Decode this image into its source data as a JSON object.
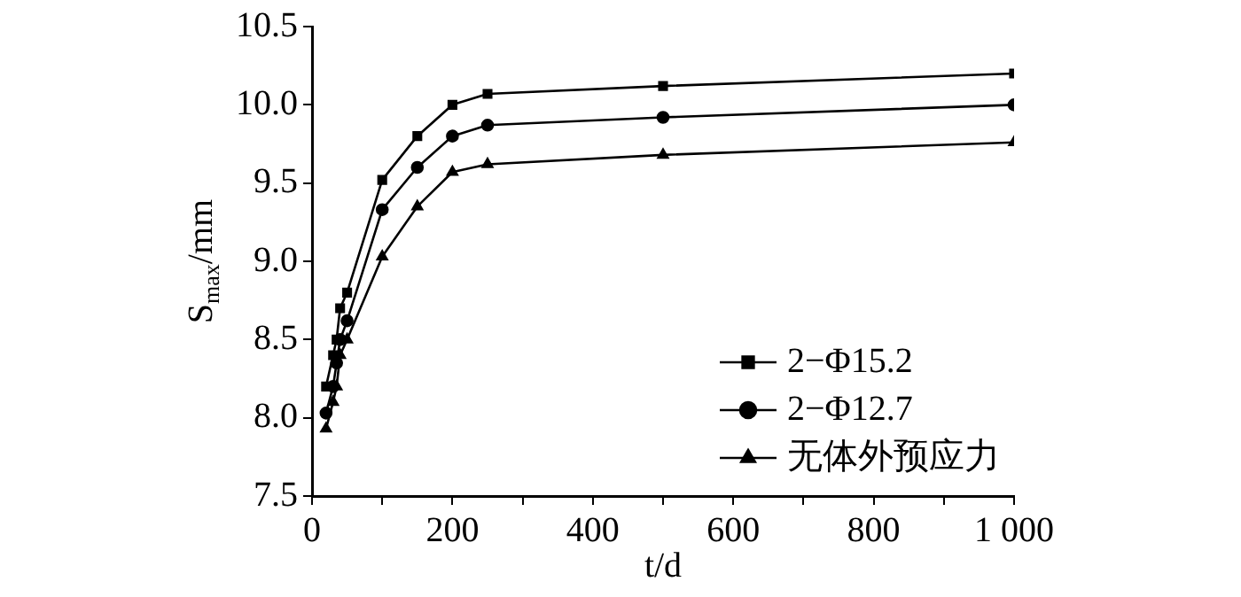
{
  "chart_data": {
    "type": "line",
    "xlabel": "t/d",
    "ylabel": "S$_{max}$/mm",
    "x": [
      20,
      30,
      35,
      40,
      50,
      100,
      150,
      200,
      250,
      500,
      1000
    ],
    "series": [
      {
        "name": "2−Φ15.2",
        "color": "#000000",
        "marker": "square",
        "values": [
          8.2,
          8.4,
          8.5,
          8.7,
          8.8,
          9.52,
          9.8,
          10.0,
          10.07,
          10.12,
          10.2
        ]
      },
      {
        "name": "2−Φ12.7",
        "color": "#000000",
        "marker": "circle",
        "values": [
          8.03,
          8.2,
          8.35,
          8.5,
          8.62,
          9.33,
          9.6,
          9.8,
          9.87,
          9.92,
          10.0
        ]
      },
      {
        "name": "无体外预应力",
        "color": "#000000",
        "marker": "triangle",
        "values": [
          7.93,
          8.1,
          8.2,
          8.4,
          8.5,
          9.03,
          9.35,
          9.57,
          9.62,
          9.68,
          9.76
        ]
      }
    ],
    "xlim": [
      0,
      1000
    ],
    "xticks": [
      0,
      {
        "value": 100,
        "label": null
      },
      200,
      {
        "value": 300,
        "label": null
      },
      400,
      {
        "value": 500,
        "label": null
      },
      600,
      {
        "value": 700,
        "label": null
      },
      800,
      {
        "value": 900,
        "label": null
      },
      {
        "value": 1000,
        "label": "1 000"
      }
    ],
    "ylim": [
      7.5,
      10.5
    ],
    "yticks": [
      {
        "value": 7.5,
        "label": "7.5"
      },
      {
        "value": 8,
        "label": "8.0"
      },
      {
        "value": 8.5,
        "label": "8.5"
      },
      {
        "value": 9,
        "label": "9.0"
      },
      {
        "value": 9.5,
        "label": "9.5"
      },
      {
        "value": 10,
        "label": "10.0"
      },
      {
        "value": 10.5,
        "label": "10.5"
      }
    ],
    "grid": false,
    "legend": "bottom right",
    "line_style": "solid"
  }
}
